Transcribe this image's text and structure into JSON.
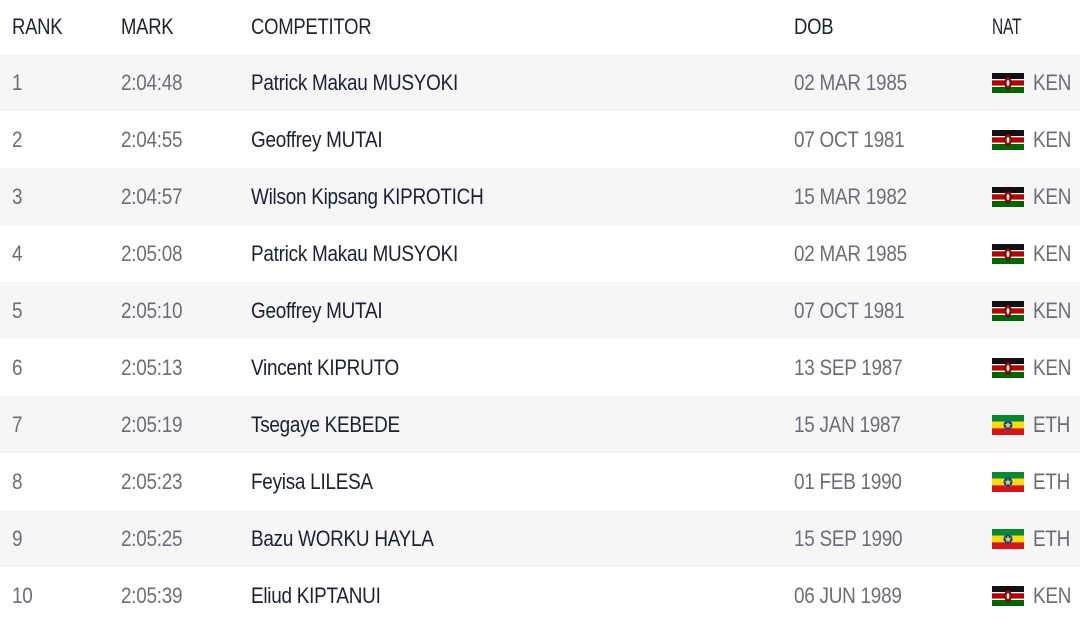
{
  "table": {
    "headers": {
      "rank": "RANK",
      "mark": "MARK",
      "competitor": "COMPETITOR",
      "dob": "DOB",
      "nat": "NAT"
    },
    "rows": [
      {
        "rank": "1",
        "mark": "2:04:48",
        "competitor": "Patrick Makau MUSYOKI",
        "dob": "02 MAR 1985",
        "nat": "KEN",
        "flag": "kenya-flag-icon"
      },
      {
        "rank": "2",
        "mark": "2:04:55",
        "competitor": "Geoffrey MUTAI",
        "dob": "07 OCT 1981",
        "nat": "KEN",
        "flag": "kenya-flag-icon"
      },
      {
        "rank": "3",
        "mark": "2:04:57",
        "competitor": "Wilson Kipsang KIPROTICH",
        "dob": "15 MAR 1982",
        "nat": "KEN",
        "flag": "kenya-flag-icon"
      },
      {
        "rank": "4",
        "mark": "2:05:08",
        "competitor": "Patrick Makau MUSYOKI",
        "dob": "02 MAR 1985",
        "nat": "KEN",
        "flag": "kenya-flag-icon"
      },
      {
        "rank": "5",
        "mark": "2:05:10",
        "competitor": "Geoffrey MUTAI",
        "dob": "07 OCT 1981",
        "nat": "KEN",
        "flag": "kenya-flag-icon"
      },
      {
        "rank": "6",
        "mark": "2:05:13",
        "competitor": "Vincent KIPRUTO",
        "dob": "13 SEP 1987",
        "nat": "KEN",
        "flag": "kenya-flag-icon"
      },
      {
        "rank": "7",
        "mark": "2:05:19",
        "competitor": "Tsegaye KEBEDE",
        "dob": "15 JAN 1987",
        "nat": "ETH",
        "flag": "ethiopia-flag-icon"
      },
      {
        "rank": "8",
        "mark": "2:05:23",
        "competitor": "Feyisa LILESA",
        "dob": "01 FEB 1990",
        "nat": "ETH",
        "flag": "ethiopia-flag-icon"
      },
      {
        "rank": "9",
        "mark": "2:05:25",
        "competitor": "Bazu WORKU HAYLA",
        "dob": "15 SEP 1990",
        "nat": "ETH",
        "flag": "ethiopia-flag-icon"
      },
      {
        "rank": "10",
        "mark": "2:05:39",
        "competitor": "Eliud KIPTANUI",
        "dob": "06 JUN 1989",
        "nat": "KEN",
        "flag": "kenya-flag-icon"
      }
    ]
  },
  "colors": {
    "header_text": "#1e2330",
    "cell_text": "#6b6e78",
    "name_text": "#1b2033",
    "row_alt_bg": "#f6f6f6",
    "row_bg": "#ffffff"
  }
}
